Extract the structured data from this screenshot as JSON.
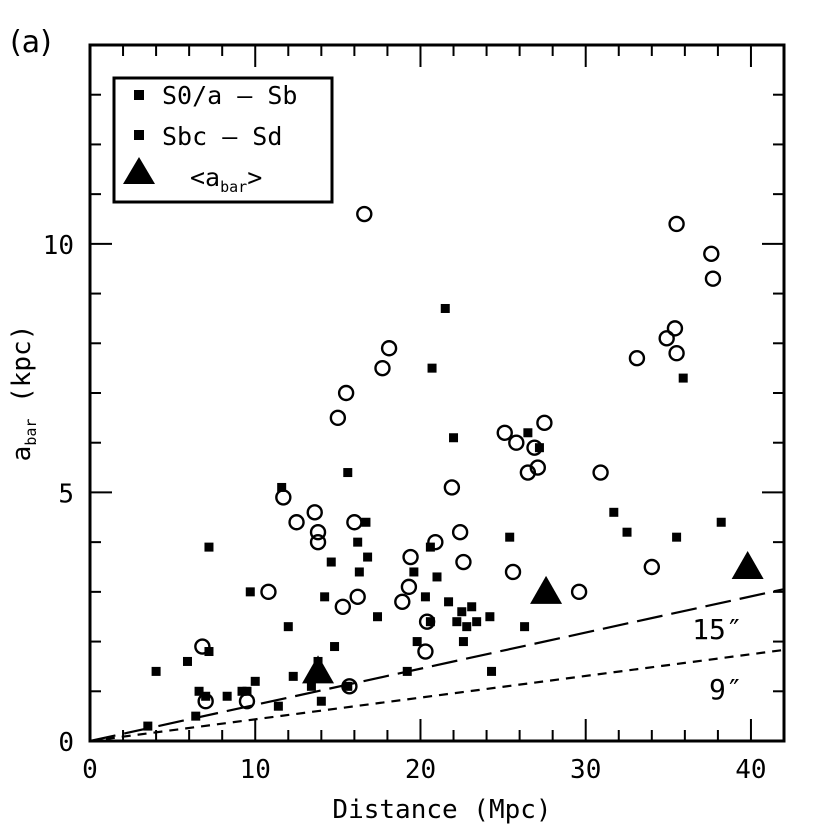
{
  "panel_label": "(a)",
  "chart_data": {
    "type": "scatter",
    "title": "",
    "xlabel": "Distance (Mpc)",
    "ylabel_main": "a",
    "ylabel_sub": "bar",
    "ylabel_tail": " (kpc)",
    "xlim": [
      0,
      42
    ],
    "ylim": [
      0,
      14
    ],
    "x_ticks": [
      0,
      10,
      20,
      30,
      40
    ],
    "y_ticks": [
      0,
      5,
      10
    ],
    "legend": {
      "placement": "top-left",
      "entries": [
        {
          "label": "S0/a – Sb",
          "marker": "square"
        },
        {
          "label": "Sbc – Sd",
          "marker": "square"
        },
        {
          "label_main": "<a",
          "label_sub": "bar",
          "label_tail": ">",
          "marker": "triangle"
        }
      ]
    },
    "series": [
      {
        "name": "S0/a - Sb",
        "marker": "open-circle",
        "points": [
          [
            6.8,
            1.9
          ],
          [
            7.0,
            0.8
          ],
          [
            9.5,
            0.8
          ],
          [
            10.8,
            3.0
          ],
          [
            11.7,
            4.9
          ],
          [
            12.5,
            4.4
          ],
          [
            13.6,
            4.6
          ],
          [
            13.8,
            4.2
          ],
          [
            13.8,
            4.0
          ],
          [
            15.0,
            6.5
          ],
          [
            15.3,
            2.7
          ],
          [
            15.5,
            7.0
          ],
          [
            15.7,
            1.1
          ],
          [
            16.0,
            4.4
          ],
          [
            16.2,
            2.9
          ],
          [
            16.6,
            10.6
          ],
          [
            17.7,
            7.5
          ],
          [
            18.1,
            7.9
          ],
          [
            18.9,
            2.8
          ],
          [
            19.3,
            3.1
          ],
          [
            19.4,
            3.7
          ],
          [
            20.3,
            1.8
          ],
          [
            20.4,
            2.4
          ],
          [
            20.9,
            4.0
          ],
          [
            21.9,
            5.1
          ],
          [
            22.4,
            4.2
          ],
          [
            22.6,
            3.6
          ],
          [
            25.1,
            6.2
          ],
          [
            25.6,
            3.4
          ],
          [
            25.8,
            6.0
          ],
          [
            26.5,
            5.4
          ],
          [
            27.1,
            5.5
          ],
          [
            27.5,
            6.4
          ],
          [
            26.9,
            5.9
          ],
          [
            29.6,
            3.0
          ],
          [
            30.9,
            5.4
          ],
          [
            33.1,
            7.7
          ],
          [
            34.0,
            3.5
          ],
          [
            34.9,
            8.1
          ],
          [
            35.4,
            8.3
          ],
          [
            35.5,
            7.8
          ],
          [
            35.5,
            10.4
          ],
          [
            37.6,
            9.8
          ],
          [
            37.7,
            9.3
          ]
        ]
      },
      {
        "name": "Sbc - Sd",
        "marker": "filled-square",
        "points": [
          [
            3.5,
            0.3
          ],
          [
            4.0,
            1.4
          ],
          [
            5.9,
            1.6
          ],
          [
            6.4,
            0.5
          ],
          [
            6.6,
            1.0
          ],
          [
            7.0,
            0.9
          ],
          [
            7.2,
            3.9
          ],
          [
            7.2,
            1.8
          ],
          [
            8.3,
            0.9
          ],
          [
            9.2,
            1.0
          ],
          [
            9.5,
            1.0
          ],
          [
            9.7,
            3.0
          ],
          [
            10.0,
            1.2
          ],
          [
            11.4,
            0.7
          ],
          [
            11.6,
            5.1
          ],
          [
            12.0,
            2.3
          ],
          [
            12.3,
            1.3
          ],
          [
            13.4,
            1.1
          ],
          [
            13.8,
            1.6
          ],
          [
            14.0,
            0.8
          ],
          [
            14.2,
            2.9
          ],
          [
            14.8,
            1.9
          ],
          [
            14.6,
            3.6
          ],
          [
            15.6,
            5.4
          ],
          [
            15.6,
            1.1
          ],
          [
            16.2,
            4.0
          ],
          [
            16.3,
            3.4
          ],
          [
            16.7,
            4.4
          ],
          [
            16.8,
            3.7
          ],
          [
            17.4,
            2.5
          ],
          [
            19.2,
            1.4
          ],
          [
            19.6,
            3.4
          ],
          [
            19.8,
            2.0
          ],
          [
            20.3,
            2.9
          ],
          [
            20.6,
            2.4
          ],
          [
            20.7,
            7.5
          ],
          [
            20.6,
            3.9
          ],
          [
            21.0,
            3.3
          ],
          [
            21.5,
            8.7
          ],
          [
            21.7,
            2.8
          ],
          [
            22.0,
            6.1
          ],
          [
            22.2,
            2.4
          ],
          [
            22.5,
            2.6
          ],
          [
            22.6,
            2.0
          ],
          [
            22.8,
            2.3
          ],
          [
            23.1,
            2.7
          ],
          [
            23.4,
            2.4
          ],
          [
            24.2,
            2.5
          ],
          [
            24.3,
            1.4
          ],
          [
            25.4,
            4.1
          ],
          [
            26.3,
            2.3
          ],
          [
            26.5,
            6.2
          ],
          [
            27.2,
            5.9
          ],
          [
            31.7,
            4.6
          ],
          [
            32.5,
            4.2
          ],
          [
            35.5,
            4.1
          ],
          [
            35.9,
            7.3
          ],
          [
            38.2,
            4.4
          ]
        ]
      },
      {
        "name": "<a_bar>",
        "marker": "filled-triangle",
        "points": [
          [
            13.8,
            1.4
          ],
          [
            27.6,
            3.0
          ],
          [
            39.8,
            3.5
          ]
        ]
      }
    ],
    "reference_lines": [
      {
        "label": "15″",
        "style": "long-dash",
        "arcsec": 15,
        "x_range": [
          0,
          42
        ]
      },
      {
        "label": "9″",
        "style": "short-dash",
        "arcsec": 9,
        "x_range": [
          0,
          42
        ]
      }
    ]
  }
}
